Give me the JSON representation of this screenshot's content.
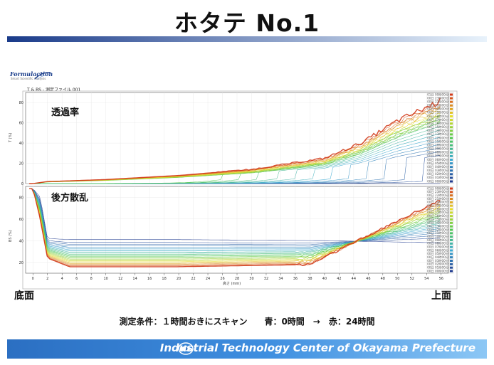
{
  "slide": {
    "title": "ホタテ No.1",
    "left_label": "底面",
    "right_label": "上面",
    "condition": "測定条件：１時間おきにスキャン　　青：0時間　→　赤：24時間",
    "footer": "Industrial Technology Center of Okayama Prefecture"
  },
  "logo": {
    "name": "Formulaction",
    "tagline": "Smart Scientific Analysis"
  },
  "window": {
    "caption": "T & BS - 測定ファイル 001"
  },
  "colors": {
    "title_bar_start": "#1a3b8a",
    "title_bar_end": "#e8f2fb",
    "footer": "#2b6fc2",
    "curve_start": "#1f3a8f",
    "curve_end": "#d23a1a"
  },
  "chart_data": [
    {
      "type": "line",
      "panel_label": "透過率",
      "ylabel": "T (%)",
      "ylim": [
        0,
        90
      ],
      "yticks": [
        "0",
        "20",
        "40",
        "60",
        "80"
      ],
      "xlim": [
        -1,
        57
      ],
      "xticks": [
        "0",
        "2",
        "4",
        "6",
        "8",
        "10",
        "12",
        "14",
        "16",
        "18",
        "20",
        "22",
        "24",
        "26",
        "28",
        "30",
        "32",
        "34",
        "36",
        "38",
        "40",
        "42",
        "44",
        "46",
        "48",
        "50",
        "52",
        "54",
        "56"
      ],
      "xlabel": "",
      "series_count": 25,
      "legend": [
        "00日 00時00分",
        "00日 01時00分",
        "00日 02時00分",
        "00日 03時00分",
        "00日 04時00分",
        "00日 05時00分",
        "00日 06時00分",
        "00日 07時00分",
        "00日 08時00分",
        "00日 09時00分",
        "00日 10時00分",
        "00日 11時00分",
        "00日 12時00分",
        "00日 13時00分",
        "00日 14時00分",
        "00日 15時00分",
        "00日 16時00分",
        "00日 17時00分",
        "00日 18時00分",
        "00日 19時00分",
        "00日 20時00分",
        "00日 21時00分",
        "00日 22時00分",
        "00日 23時00分",
        "01日 00時00分"
      ],
      "final_curve": {
        "x": [
          0,
          2,
          10,
          20,
          30,
          40,
          45,
          50,
          56
        ],
        "y": [
          0,
          2,
          4,
          8,
          14,
          25,
          40,
          62,
          82
        ]
      }
    },
    {
      "type": "line",
      "panel_label": "後方散乱",
      "ylabel": "BS (%)",
      "ylim": [
        10,
        90
      ],
      "yticks": [
        "20",
        "40",
        "60",
        "80"
      ],
      "xlim": [
        -1,
        57
      ],
      "xticks": [
        "0",
        "2",
        "4",
        "6",
        "8",
        "10",
        "12",
        "14",
        "16",
        "18",
        "20",
        "22",
        "24",
        "26",
        "28",
        "30",
        "32",
        "34",
        "36",
        "38",
        "40",
        "42",
        "44",
        "46",
        "48",
        "50",
        "52",
        "54",
        "56"
      ],
      "xlabel": "高さ (mm)",
      "series_count": 25,
      "legend": [
        "00日 00時00分",
        "00日 01時00分",
        "00日 02時00分",
        "00日 03時00分",
        "00日 04時00分",
        "00日 05時00分",
        "00日 06時00分",
        "00日 07時00分",
        "00日 08時00分",
        "00日 09時00分",
        "00日 10時00分",
        "00日 11時00分",
        "00日 12時00分",
        "00日 13時00分",
        "00日 14時00分",
        "00日 15時00分",
        "00日 16時00分",
        "00日 17時00分",
        "00日 18時00分",
        "00日 19時00分",
        "00日 20時00分",
        "00日 21時00分",
        "00日 22時00分",
        "00日 23時00分",
        "01日 00時00分"
      ],
      "initial_curve": {
        "x": [
          0,
          1,
          2,
          5,
          20,
          40,
          56
        ],
        "y": [
          88,
          80,
          42,
          41,
          41,
          40,
          38
        ]
      },
      "final_curve": {
        "x": [
          0,
          1,
          2,
          5,
          20,
          38,
          44,
          50,
          56
        ],
        "y": [
          88,
          60,
          24,
          16,
          16,
          18,
          38,
          58,
          78
        ]
      }
    }
  ]
}
